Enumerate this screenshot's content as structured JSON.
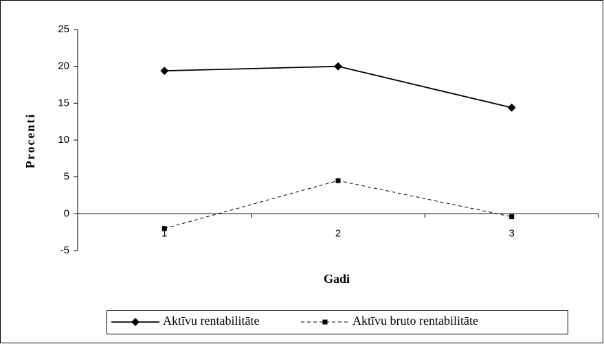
{
  "chart_data": {
    "type": "line",
    "x_label": "Gadi",
    "y_label": "Procenti",
    "categories": [
      "1",
      "2",
      "3"
    ],
    "series": [
      {
        "name": "Aktīvu rentabilitāte",
        "color": "#000000",
        "marker": "diamond",
        "dashed": false,
        "values": [
          19.4,
          20,
          14.4
        ]
      },
      {
        "name": "Aktīvu bruto rentabilitāte",
        "color": "#000000",
        "marker": "square",
        "dashed": true,
        "values": [
          -2,
          4.5,
          -0.4
        ]
      }
    ],
    "ylim": [
      -5,
      25
    ],
    "yticks": [
      -5,
      0,
      5,
      10,
      15,
      20,
      25
    ],
    "grid": false,
    "legend": "bottom"
  }
}
